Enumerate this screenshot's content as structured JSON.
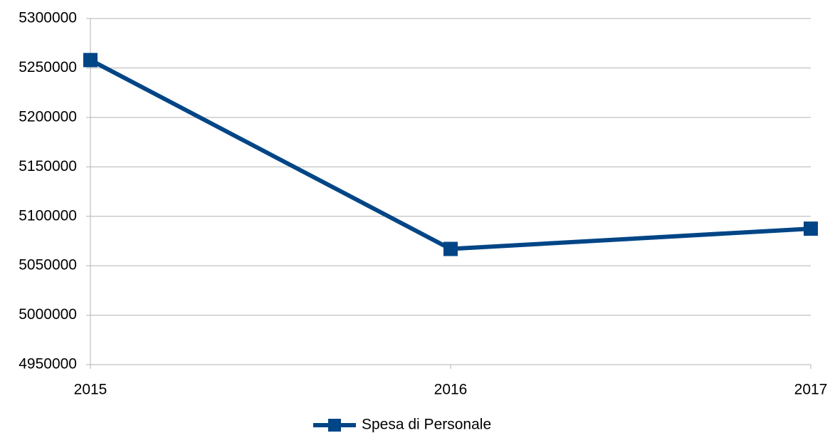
{
  "chart_data": {
    "type": "line",
    "categories": [
      "2015",
      "2016",
      "2017"
    ],
    "series": [
      {
        "name": "Spesa di Personale",
        "color": "#004586",
        "values": [
          5258000,
          5067000,
          5087500
        ]
      }
    ],
    "ylim": [
      4950000,
      5300000
    ],
    "yticks": [
      4950000,
      5000000,
      5050000,
      5100000,
      5150000,
      5200000,
      5250000,
      5300000
    ],
    "grid": true,
    "legend": "bottom"
  }
}
